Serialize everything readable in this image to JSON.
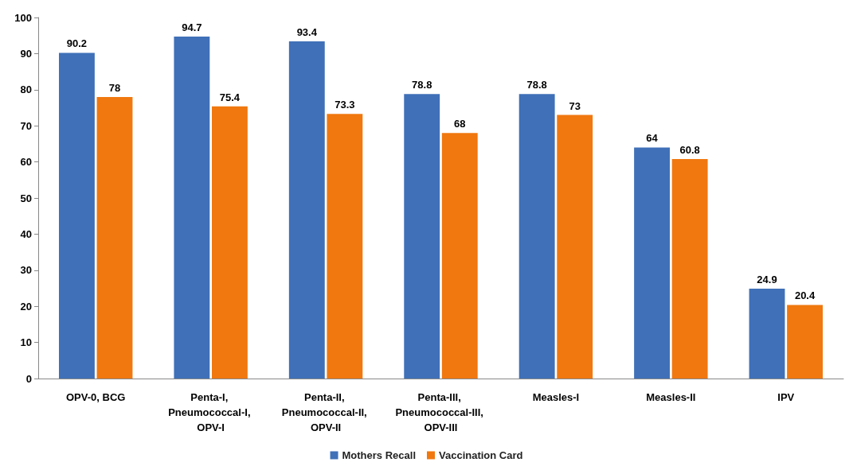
{
  "chart_data": {
    "type": "bar",
    "categories": [
      "OPV-0, BCG",
      "Penta-I, Pneumococcal-I, OPV-I",
      "Penta-II, Pneumococcal-II, OPV-II",
      "Penta-III, Pneumococcal-III, OPV-III",
      "Measles-I",
      "Measles-II",
      "IPV"
    ],
    "series": [
      {
        "name": "Mothers Recall",
        "color": "#3f70b8",
        "values": [
          90.2,
          94.7,
          93.4,
          78.8,
          78.8,
          64,
          24.9
        ]
      },
      {
        "name": "Vaccination Card",
        "color": "#f0780f",
        "values": [
          78,
          75.4,
          73.3,
          68,
          73,
          60.8,
          20.4
        ]
      }
    ],
    "ylim": [
      0,
      100
    ],
    "yticks": [
      0,
      10,
      20,
      30,
      40,
      50,
      60,
      70,
      80,
      90,
      100
    ],
    "grid": false,
    "legend": "bottom",
    "data_labels": true
  }
}
